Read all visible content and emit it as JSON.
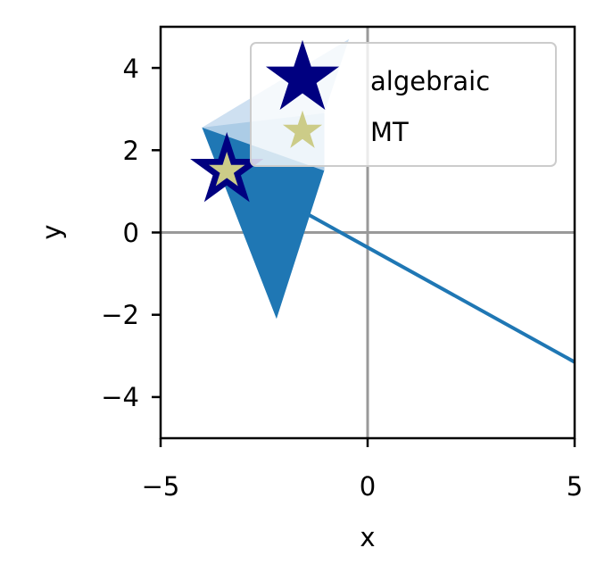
{
  "chart_data": {
    "type": "line",
    "title": "",
    "xlabel": "x",
    "ylabel": "y",
    "xlim": [
      -5,
      5
    ],
    "ylim": [
      -5,
      5
    ],
    "xticks": [
      -5,
      0,
      5
    ],
    "xtick_labels": [
      "−5",
      "0",
      "5"
    ],
    "yticks": [
      -4,
      -2,
      0,
      2,
      4
    ],
    "ytick_labels": [
      "−4",
      "−2",
      "0",
      "2",
      "4"
    ],
    "grid": false,
    "zero_lines": {
      "x": 0,
      "y": 0,
      "color": "#999999"
    },
    "line": {
      "x": [
        -1.55,
        5
      ],
      "y": [
        0.5,
        -3.15
      ],
      "color": "#1f77b4"
    },
    "regions": [
      {
        "vertices": [
          [
            -4.0,
            2.55
          ],
          [
            -2.2,
            -2.1
          ],
          [
            -1.05,
            1.5
          ],
          [
            -1.05,
            2.9
          ]
        ],
        "color": "#1f77b4",
        "opacity": 1.0
      },
      {
        "vertices": [
          [
            -4.0,
            2.55
          ],
          [
            -0.45,
            4.7
          ],
          [
            -1.05,
            2.9
          ],
          [
            -1.05,
            1.5
          ]
        ],
        "color": "#c6dbef",
        "opacity": 0.85
      }
    ],
    "series": [
      {
        "name": "algebraic",
        "marker": "star",
        "x": [
          -3.4
        ],
        "y": [
          1.5
        ],
        "color": "#000080",
        "size": "large"
      },
      {
        "name": "MT",
        "marker": "star",
        "x": [
          -3.4
        ],
        "y": [
          1.5
        ],
        "color": "#cccc88",
        "size": "small"
      }
    ],
    "legend": {
      "position": "top-right",
      "entries": [
        "algebraic",
        "MT"
      ]
    }
  }
}
